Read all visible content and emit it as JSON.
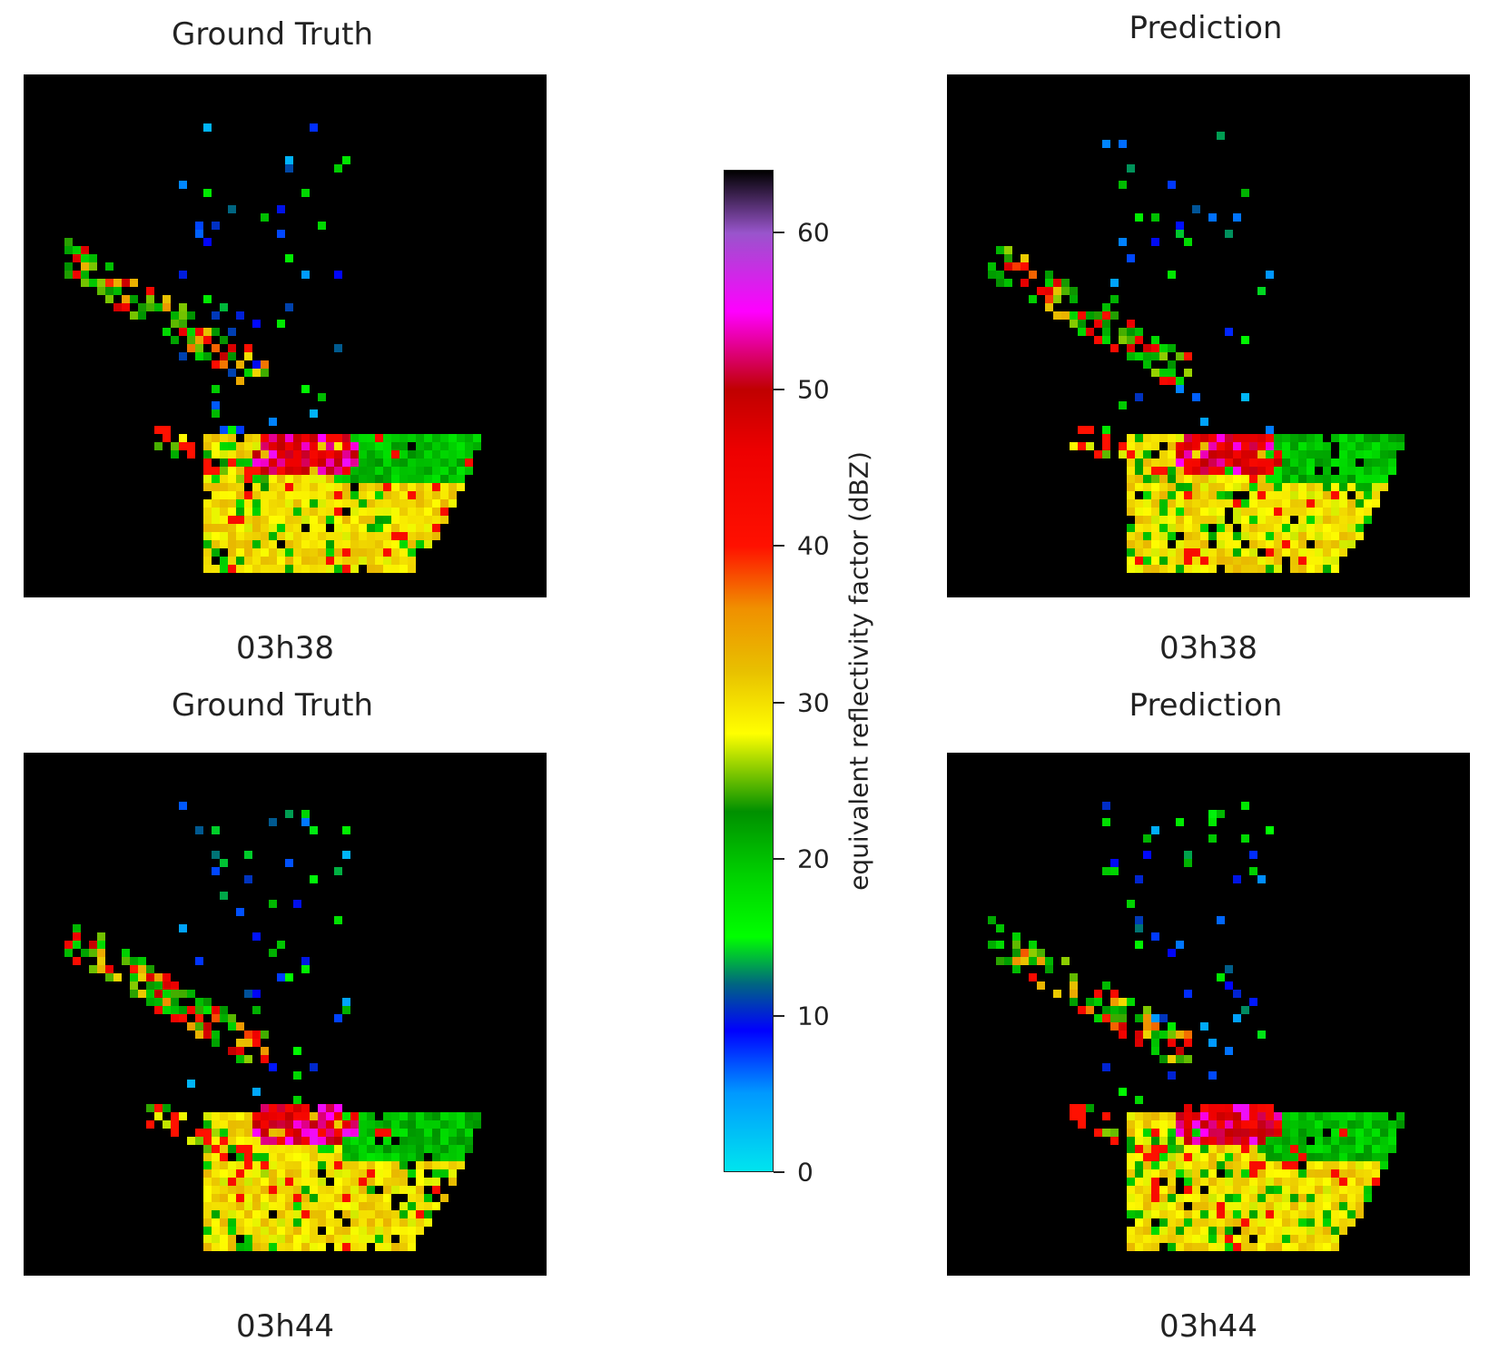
{
  "chart_data": {
    "type": "heatmap",
    "panels": [
      {
        "title": "Ground Truth",
        "time": "03h38"
      },
      {
        "title": "Prediction",
        "time": "03h38"
      },
      {
        "title": "Ground Truth",
        "time": "03h44"
      },
      {
        "title": "Prediction",
        "time": "03h44"
      }
    ],
    "colorbar": {
      "label": "equivalent reflectivity factor (dBZ)",
      "range": [
        0,
        64
      ],
      "ticks": [
        0,
        10,
        20,
        30,
        40,
        50,
        60
      ],
      "tick_labels": [
        "0",
        "10",
        "20",
        "30",
        "40",
        "50",
        "60"
      ],
      "colormap": [
        [
          0,
          "#00e5ee"
        ],
        [
          5,
          "#0099ff"
        ],
        [
          9,
          "#0000ff"
        ],
        [
          12,
          "#006680"
        ],
        [
          15,
          "#00ff00"
        ],
        [
          19,
          "#00d000"
        ],
        [
          23,
          "#009000"
        ],
        [
          28,
          "#ffff00"
        ],
        [
          32,
          "#e8c000"
        ],
        [
          36,
          "#f09000"
        ],
        [
          40,
          "#ff1000"
        ],
        [
          46,
          "#ee0000"
        ],
        [
          50,
          "#c00000"
        ],
        [
          55,
          "#ff00ff"
        ],
        [
          60,
          "#9955cc"
        ],
        [
          64,
          "#000000"
        ]
      ]
    },
    "background": "#000000"
  }
}
